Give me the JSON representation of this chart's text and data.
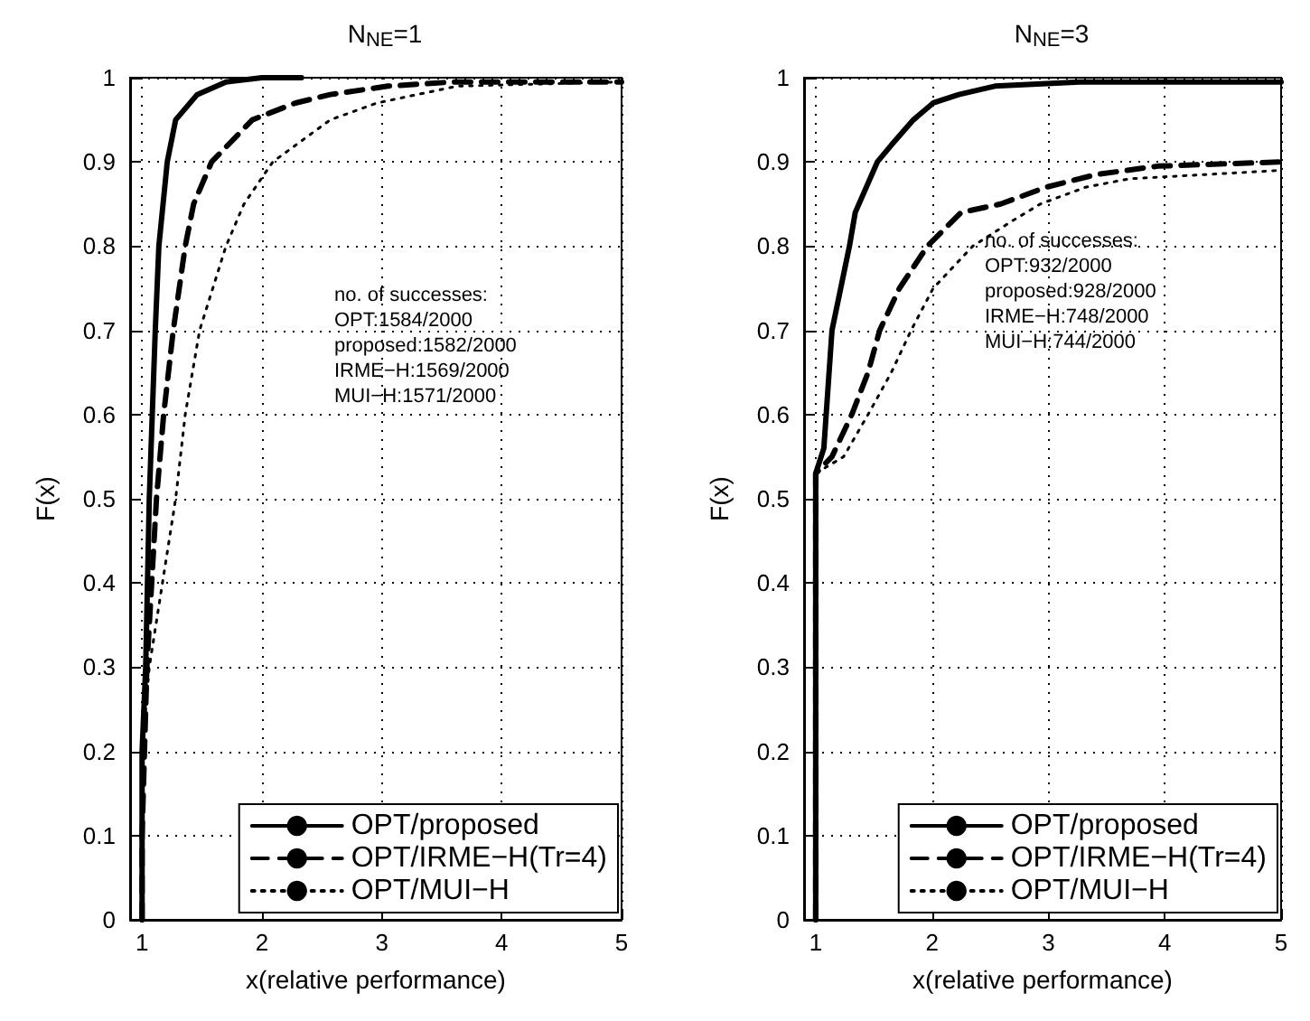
{
  "chart_data": [
    {
      "type": "line",
      "title": "N$_{NE}$=1",
      "xlabel": "x(relative performance)",
      "ylabel": "F(x)",
      "xlim": [
        0.9,
        5
      ],
      "xticks": [
        1,
        2,
        3,
        4,
        5
      ],
      "ylim": [
        0,
        1
      ],
      "yticks": [
        0,
        0.1,
        0.2,
        0.3,
        0.4,
        0.5,
        0.6,
        0.7,
        0.8,
        0.9,
        1
      ],
      "grid": true,
      "legend": "bottom right",
      "marker": "none",
      "annotations": [
        "no. of successes:",
        "OPT:1584/2000",
        "proposed:1582/2000",
        "IRME−H:1569/2000",
        "MUI−H:1571/2000"
      ],
      "series": [
        {
          "name": "OPT/proposed",
          "color": "#000000",
          "line_style": "solid",
          "x": [
            1,
            1,
            1.03,
            1.06,
            1.11,
            1.14,
            1.21,
            1.28,
            1.46,
            1.7,
            2.0,
            2.33
          ],
          "values": [
            0,
            0.2,
            0.3,
            0.5,
            0.7,
            0.8,
            0.9,
            0.95,
            0.98,
            0.995,
            1,
            1
          ]
        },
        {
          "name": "OPT/IRME−H(Tr=4)",
          "color": "#000000",
          "line_style": "dashed",
          "x": [
            1,
            1,
            1.04,
            1.12,
            1.18,
            1.26,
            1.36,
            1.43,
            1.58,
            1.92,
            2.28,
            2.57,
            3.05,
            3.6,
            5
          ],
          "values": [
            0,
            0.1,
            0.3,
            0.5,
            0.6,
            0.7,
            0.8,
            0.85,
            0.9,
            0.95,
            0.97,
            0.98,
            0.99,
            0.995,
            0.995
          ]
        },
        {
          "name": "OPT/MUI−H",
          "color": "#000000",
          "line_style": "dotted",
          "x": [
            1,
            1,
            1.06,
            1.17,
            1.28,
            1.36,
            1.48,
            1.7,
            1.85,
            2.09,
            2.57,
            2.96,
            3.63,
            5
          ],
          "values": [
            0,
            0.2,
            0.3,
            0.4,
            0.5,
            0.6,
            0.7,
            0.8,
            0.85,
            0.9,
            0.95,
            0.97,
            0.99,
            0.995
          ]
        }
      ]
    },
    {
      "type": "line",
      "title": "N$_{NE}$=3",
      "xlabel": "x(relative performance)",
      "ylabel": "F(x)",
      "xlim": [
        0.9,
        5
      ],
      "xticks": [
        1,
        2,
        3,
        4,
        5
      ],
      "ylim": [
        0,
        1
      ],
      "yticks": [
        0,
        0.1,
        0.2,
        0.3,
        0.4,
        0.5,
        0.6,
        0.7,
        0.8,
        0.9,
        1
      ],
      "grid": true,
      "legend": "bottom right",
      "marker": "none",
      "annotations": [
        "no. of successes:",
        "OPT:932/2000",
        "proposed:928/2000",
        "IRME−H:748/2000",
        "MUI−H:744/2000"
      ],
      "series": [
        {
          "name": "OPT/proposed",
          "color": "#000000",
          "line_style": "solid",
          "x": [
            1,
            1,
            1.07,
            1.09,
            1.14,
            1.29,
            1.34,
            1.53,
            1.65,
            1.84,
            2.01,
            2.23,
            2.54,
            3.27,
            5
          ],
          "values": [
            0,
            0.53,
            0.56,
            0.6,
            0.7,
            0.8,
            0.84,
            0.9,
            0.92,
            0.95,
            0.97,
            0.98,
            0.99,
            0.995,
            0.995
          ]
        },
        {
          "name": "OPT/IRME−H(Tr=4)",
          "color": "#000000",
          "line_style": "dashed",
          "x": [
            1,
            1,
            1.14,
            1.31,
            1.45,
            1.55,
            1.72,
            1.96,
            2.25,
            2.59,
            2.98,
            3.41,
            3.94,
            5
          ],
          "values": [
            0,
            0.53,
            0.55,
            0.6,
            0.65,
            0.7,
            0.75,
            0.8,
            0.84,
            0.85,
            0.87,
            0.885,
            0.895,
            0.9
          ]
        },
        {
          "name": "OPT/MUI−H",
          "color": "#000000",
          "line_style": "dotted",
          "x": [
            1,
            1,
            1.24,
            1.45,
            1.65,
            1.82,
            2.01,
            2.35,
            2.69,
            2.93,
            3.32,
            3.7,
            5
          ],
          "values": [
            0,
            0.53,
            0.55,
            0.6,
            0.65,
            0.7,
            0.75,
            0.8,
            0.83,
            0.85,
            0.87,
            0.88,
            0.89
          ]
        }
      ]
    }
  ]
}
